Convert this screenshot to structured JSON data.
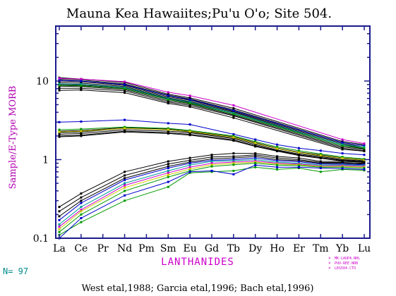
{
  "chart_data": {
    "type": "line",
    "title": "Mauna Kea Hawaiites;Pu'u O'o; Site 504.",
    "xlabel": "LANTHANIDES",
    "ylabel": "Sample/E-Type MORB",
    "footer": "West etal,1988; Garcia etal,1996; Bach etal,1996)",
    "n_label": "N= 97",
    "y_scale": "log",
    "ylim": [
      0.1,
      50
    ],
    "y_ticks": [
      {
        "value": 0.1,
        "label": "0.1"
      },
      {
        "value": 1,
        "label": "1"
      },
      {
        "value": 10,
        "label": "10"
      }
    ],
    "categories": [
      "La",
      "Ce",
      "Pr",
      "Nd",
      "Pm",
      "Sm",
      "Eu",
      "Gd",
      "Tb",
      "Dy",
      "Ho",
      "Er",
      "Tm",
      "Yb",
      "Lu"
    ],
    "legend": [
      {
        "label": "MK-LAUPA.NHL",
        "color": "#cc00cc"
      },
      {
        "label": "PUU-REE.NRB",
        "color": "#cc00cc"
      },
      {
        "label": "LEG504.CTO",
        "color": "#cc00cc"
      }
    ],
    "colors": {
      "axis": "#1a1a8c",
      "title": "#000000",
      "ylabel": "#b000b0",
      "xlabel": "#cc00cc",
      "n_label": "#008b8b"
    },
    "series": [
      {
        "color": "#000000",
        "values": {
          "La": 11.0,
          "Ce": 10.6,
          "Nd": 9.6,
          "Sm": 6.8,
          "Eu": 6.1,
          "Tb": 4.5,
          "Yb": 1.7,
          "Lu": 1.55
        }
      },
      {
        "color": "#000000",
        "values": {
          "La": 10.5,
          "Ce": 10.3,
          "Nd": 9.2,
          "Sm": 6.6,
          "Eu": 5.9,
          "Tb": 4.3,
          "Yb": 1.65,
          "Lu": 1.5
        }
      },
      {
        "color": "#000000",
        "values": {
          "La": 10.0,
          "Ce": 9.8,
          "Nd": 8.8,
          "Sm": 6.3,
          "Eu": 5.7,
          "Tb": 4.1,
          "Yb": 1.6,
          "Lu": 1.45
        }
      },
      {
        "color": "#000000",
        "values": {
          "La": 9.5,
          "Ce": 9.4,
          "Nd": 8.5,
          "Sm": 6.1,
          "Eu": 5.5,
          "Tb": 4.0,
          "Yb": 1.55,
          "Lu": 1.4
        }
      },
      {
        "color": "#000000",
        "values": {
          "La": 9.0,
          "Ce": 8.9,
          "Nd": 8.2,
          "Sm": 5.9,
          "Eu": 5.3,
          "Tb": 3.9,
          "Yb": 1.5,
          "Lu": 1.38
        }
      },
      {
        "color": "#000000",
        "values": {
          "La": 8.6,
          "Ce": 8.5,
          "Nd": 7.8,
          "Sm": 5.6,
          "Eu": 5.1,
          "Tb": 3.7,
          "Yb": 1.45,
          "Lu": 1.35
        }
      },
      {
        "color": "#000000",
        "values": {
          "La": 8.1,
          "Ce": 8.1,
          "Nd": 7.5,
          "Sm": 5.4,
          "Eu": 4.9,
          "Tb": 3.6,
          "Yb": 1.4,
          "Lu": 1.3
        }
      },
      {
        "color": "#000000",
        "values": {
          "La": 7.6,
          "Ce": 7.7,
          "Nd": 7.1,
          "Sm": 5.2,
          "Eu": 4.7,
          "Tb": 3.4,
          "Yb": 1.35,
          "Lu": 1.28
        }
      },
      {
        "color": "#cc00cc",
        "values": {
          "La": 10.8,
          "Ce": 10.6,
          "Nd": 9.8,
          "Sm": 7.2,
          "Eu": 6.5,
          "Tb": 4.9,
          "Yb": 1.8,
          "Lu": 1.6
        }
      },
      {
        "color": "#0000cc",
        "values": {
          "La": 10.2,
          "Ce": 10.0,
          "Nd": 9.0,
          "Sm": 6.5,
          "Eu": 5.8,
          "Tb": 4.2,
          "Yb": 1.65,
          "Lu": 1.5
        }
      },
      {
        "color": "#009999",
        "values": {
          "La": 9.2,
          "Ce": 9.1,
          "Nd": 8.3,
          "Sm": 6.0,
          "Eu": 5.4,
          "Tb": 3.9,
          "Yb": 1.55,
          "Lu": 1.45
        }
      },
      {
        "color": "#009900",
        "values": {
          "La": 8.8,
          "Ce": 8.7,
          "Nd": 8.0,
          "Sm": 5.8,
          "Eu": 5.2,
          "Tb": 3.8,
          "Yb": 1.5,
          "Lu": 1.4
        }
      },
      {
        "color": "#0000cc",
        "values": {
          "La": 3.0,
          "Ce": 3.05,
          "Nd": 3.2,
          "Sm": 2.9,
          "Eu": 2.8,
          "Tb": 2.1,
          "Dy": 1.8,
          "Ho": 1.55,
          "Er": 1.4,
          "Tm": 1.3,
          "Yb": 1.2,
          "Lu": 1.15
        }
      },
      {
        "color": "#000000",
        "values": {
          "La": 2.3,
          "Ce": 2.35,
          "Nd": 2.55,
          "Sm": 2.45,
          "Eu": 2.3,
          "Tb": 1.95,
          "Dy": 1.65,
          "Ho": 1.4,
          "Er": 1.25,
          "Tm": 1.15,
          "Yb": 1.05,
          "Lu": 1.0
        }
      },
      {
        "color": "#000000",
        "values": {
          "La": 2.2,
          "Ce": 2.25,
          "Nd": 2.5,
          "Sm": 2.4,
          "Eu": 2.25,
          "Tb": 1.9,
          "Dy": 1.6,
          "Ho": 1.38,
          "Er": 1.22,
          "Tm": 1.12,
          "Yb": 1.03,
          "Lu": 0.98
        }
      },
      {
        "color": "#000000",
        "values": {
          "La": 2.1,
          "Ce": 2.15,
          "Nd": 2.4,
          "Sm": 2.3,
          "Eu": 2.2,
          "Tb": 1.85,
          "Dy": 1.55,
          "Ho": 1.33,
          "Er": 1.18,
          "Tm": 1.09,
          "Yb": 1.0,
          "Lu": 0.96
        }
      },
      {
        "color": "#000000",
        "values": {
          "La": 2.0,
          "Ce": 2.05,
          "Nd": 2.3,
          "Sm": 2.2,
          "Eu": 2.1,
          "Tb": 1.78,
          "Dy": 1.5,
          "Ho": 1.3,
          "Er": 1.15,
          "Tm": 1.06,
          "Yb": 0.98,
          "Lu": 0.94
        }
      },
      {
        "color": "#000000",
        "values": {
          "La": 1.95,
          "Ce": 2.0,
          "Nd": 2.25,
          "Sm": 2.15,
          "Eu": 2.05,
          "Tb": 1.74,
          "Dy": 1.47,
          "Ho": 1.28,
          "Er": 1.13,
          "Tm": 1.04,
          "Yb": 0.96,
          "Lu": 0.92
        }
      },
      {
        "color": "#009900",
        "values": {
          "La": 2.4,
          "Ce": 2.45,
          "Nd": 2.6,
          "Sm": 2.5,
          "Eu": 2.35,
          "Tb": 2.0,
          "Dy": 1.7,
          "Ho": 1.45,
          "Er": 1.3,
          "Tm": 1.18,
          "Yb": 1.08,
          "Lu": 1.02
        }
      },
      {
        "color": "#cccc00",
        "values": {
          "La": 2.25,
          "Ce": 2.3,
          "Nd": 2.5,
          "Sm": 2.4,
          "Eu": 2.28,
          "Tb": 1.92,
          "Dy": 1.62,
          "Ho": 1.38,
          "Er": 1.23,
          "Tm": 1.13,
          "Yb": 1.04,
          "Lu": 0.99
        }
      },
      {
        "color": "#000000",
        "values": {
          "La": 0.25,
          "Ce": 0.37,
          "Nd": 0.7,
          "Sm": 0.95,
          "Eu": 1.05,
          "Gd": 1.15,
          "Tb": 1.2,
          "Dy": 1.2,
          "Ho": 1.1,
          "Er": 1.05,
          "Tm": 0.95,
          "Yb": 0.95,
          "Lu": 0.93
        }
      },
      {
        "color": "#000000",
        "values": {
          "La": 0.22,
          "Ce": 0.33,
          "Nd": 0.63,
          "Sm": 0.88,
          "Eu": 0.98,
          "Gd": 1.08,
          "Tb": 1.1,
          "Dy": 1.15,
          "Ho": 1.05,
          "Er": 1.0,
          "Tm": 0.92,
          "Yb": 0.92,
          "Lu": 0.9
        }
      },
      {
        "color": "#000000",
        "values": {
          "La": 0.19,
          "Ce": 0.3,
          "Nd": 0.58,
          "Sm": 0.82,
          "Eu": 0.93,
          "Gd": 1.02,
          "Tb": 1.05,
          "Dy": 1.1,
          "Ho": 1.0,
          "Er": 0.97,
          "Tm": 0.9,
          "Yb": 0.9,
          "Lu": 0.88
        }
      },
      {
        "color": "#0000cc",
        "values": {
          "La": 0.17,
          "Ce": 0.28,
          "Nd": 0.55,
          "Sm": 0.78,
          "Eu": 0.9,
          "Gd": 0.98,
          "Tb": 1.0,
          "Dy": 1.05,
          "Ho": 0.97,
          "Er": 0.94,
          "Tm": 0.88,
          "Yb": 0.88,
          "Lu": 0.86
        }
      },
      {
        "color": "#009999",
        "values": {
          "La": 0.15,
          "Ce": 0.25,
          "Nd": 0.5,
          "Sm": 0.72,
          "Eu": 0.85,
          "Gd": 0.95,
          "Tb": 0.97,
          "Dy": 1.0,
          "Ho": 0.93,
          "Er": 0.9,
          "Tm": 0.85,
          "Yb": 0.86,
          "Lu": 0.84
        }
      },
      {
        "color": "#cc00cc",
        "values": {
          "La": 0.14,
          "Ce": 0.23,
          "Nd": 0.47,
          "Sm": 0.68,
          "Eu": 0.8,
          "Gd": 0.9,
          "Tb": 0.93,
          "Dy": 0.96,
          "Ho": 0.9,
          "Er": 0.88,
          "Tm": 0.83,
          "Yb": 0.84,
          "Lu": 0.82
        }
      },
      {
        "color": "#cccc00",
        "values": {
          "La": 0.13,
          "Ce": 0.22,
          "Nd": 0.44,
          "Sm": 0.64,
          "Eu": 0.76,
          "Gd": 0.86,
          "Tb": 0.9,
          "Dy": 0.93,
          "Ho": 0.88,
          "Er": 0.86,
          "Tm": 0.82,
          "Yb": 0.82,
          "Lu": 0.8
        }
      },
      {
        "color": "#009900",
        "values": {
          "La": 0.12,
          "Ce": 0.2,
          "Nd": 0.4,
          "Sm": 0.6,
          "Eu": 0.72,
          "Gd": 0.82,
          "Tb": 0.86,
          "Dy": 0.9,
          "Ho": 0.85,
          "Er": 0.84,
          "Tm": 0.8,
          "Yb": 0.8,
          "Lu": 0.78
        }
      },
      {
        "color": "#009900",
        "values": {
          "La": 0.11,
          "Ce": 0.16,
          "Nd": 0.3,
          "Sm": 0.45,
          "Eu": 0.68,
          "Gd": 0.7,
          "Tb": 0.72,
          "Dy": 0.8,
          "Ho": 0.75,
          "Er": 0.78,
          "Tm": 0.7,
          "Yb": 0.75,
          "Lu": 0.73
        }
      },
      {
        "color": "#0000cc",
        "values": {
          "La": 0.1,
          "Ce": 0.18,
          "Nd": 0.35,
          "Sm": 0.52,
          "Eu": 0.7,
          "Gd": 0.72,
          "Tb": 0.65,
          "Dy": 0.85,
          "Ho": 0.8,
          "Er": 0.8,
          "Tm": 0.78,
          "Yb": 0.77,
          "Lu": 0.75
        }
      }
    ]
  }
}
